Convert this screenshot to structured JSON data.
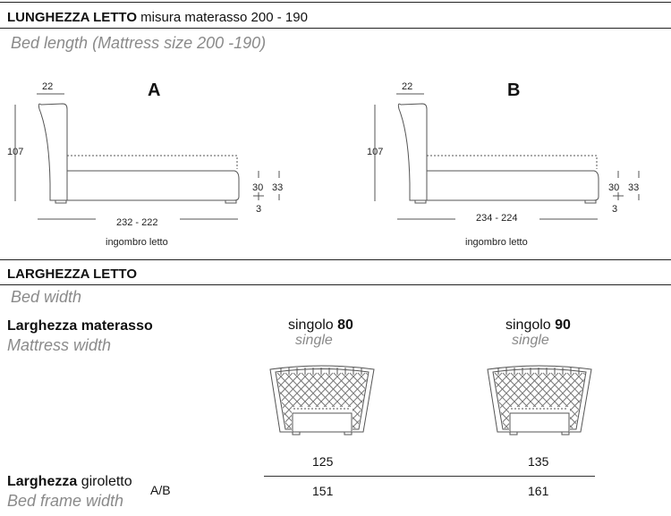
{
  "length_section": {
    "title_bold": "LUNGHEZZA LETTO",
    "title_rest": "misura materasso 200 - 190",
    "subtitle": "Bed length (Mattress size 200 -190)"
  },
  "diagrams": [
    {
      "letter": "A",
      "headboard_depth": "22",
      "height": "107",
      "length": "232 - 222",
      "caption": "ingombro letto",
      "frame_height": "30",
      "feet_height": "3",
      "total_height": "33"
    },
    {
      "letter": "B",
      "headboard_depth": "22",
      "height": "107",
      "length": "234 - 224",
      "caption": "ingombro letto",
      "frame_height": "30",
      "feet_height": "3",
      "total_height": "33"
    }
  ],
  "width_section": {
    "title": "LARGHEZZA LETTO",
    "subtitle": "Bed width",
    "mattress_label_bold": "Larghezza materasso",
    "mattress_label_en": "Mattress width",
    "frame_label_bold": "Larghezza",
    "frame_label_rest": "giroletto",
    "frame_label_suffix": "A/B",
    "frame_label_en": "Bed frame width",
    "columns": [
      {
        "label": "singolo",
        "size": "80",
        "label_en": "single",
        "mattress_width": "125",
        "frame_width": "151"
      },
      {
        "label": "singolo",
        "size": "90",
        "label_en": "single",
        "mattress_width": "135",
        "frame_width": "161"
      }
    ]
  }
}
